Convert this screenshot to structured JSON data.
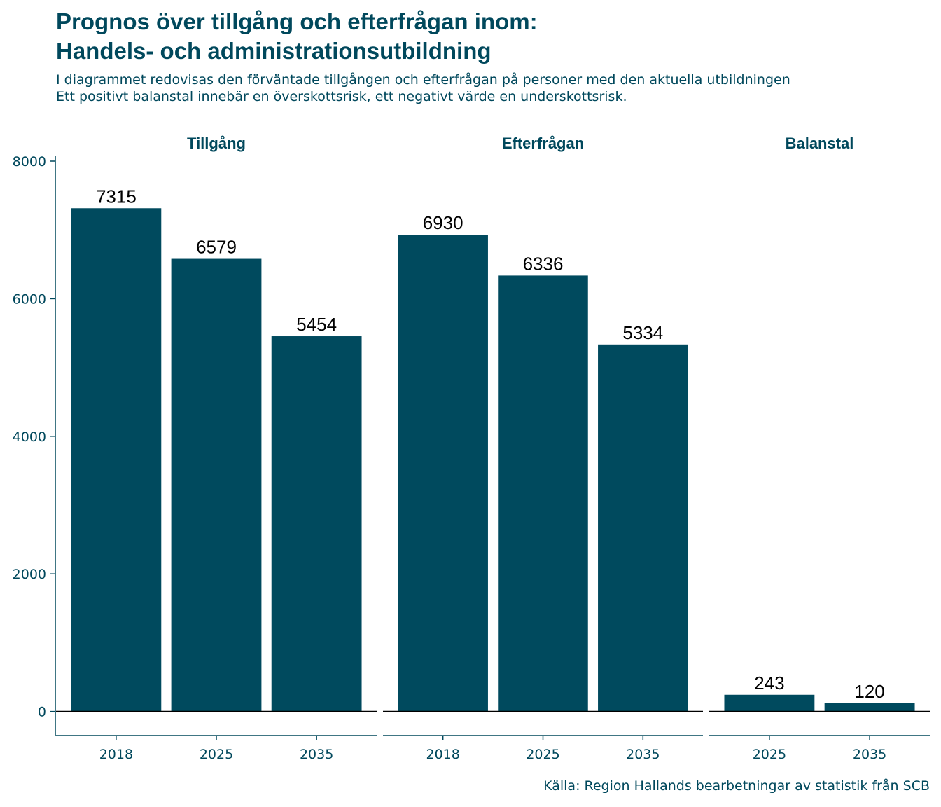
{
  "title_line1": "Prognos över tillgång och efterfrågan inom:",
  "title_line2": "Handels- och administrationsutbildning",
  "subtitle_line1": "I diagrammet redovisas den förväntade tillgången och efterfrågan på personer med den aktuella utbildningen",
  "subtitle_line2": "Ett positivt balanstal innebär en överskottsrisk, ett negativt värde en underskottsrisk.",
  "caption": "Källa: Region Hallands bearbetningar av statistik från SCB",
  "colors": {
    "bar": "#004a5e",
    "text": "#00485c",
    "label": "#000000"
  },
  "chart_data": {
    "type": "bar",
    "ylim": [
      -350,
      8000
    ],
    "y_ticks": [
      0,
      2000,
      4000,
      6000,
      8000
    ],
    "y_tick_labels": [
      "0",
      "2000",
      "4000",
      "6000",
      "8000"
    ],
    "grid": false,
    "facets": [
      {
        "name": "Tillgång",
        "categories": [
          "2018",
          "2025",
          "2035"
        ],
        "values": [
          7315,
          6579,
          5454
        ]
      },
      {
        "name": "Efterfrågan",
        "categories": [
          "2018",
          "2025",
          "2035"
        ],
        "values": [
          6930,
          6336,
          5334
        ]
      },
      {
        "name": "Balanstal",
        "categories": [
          "2025",
          "2035"
        ],
        "values": [
          243,
          120
        ]
      }
    ]
  }
}
